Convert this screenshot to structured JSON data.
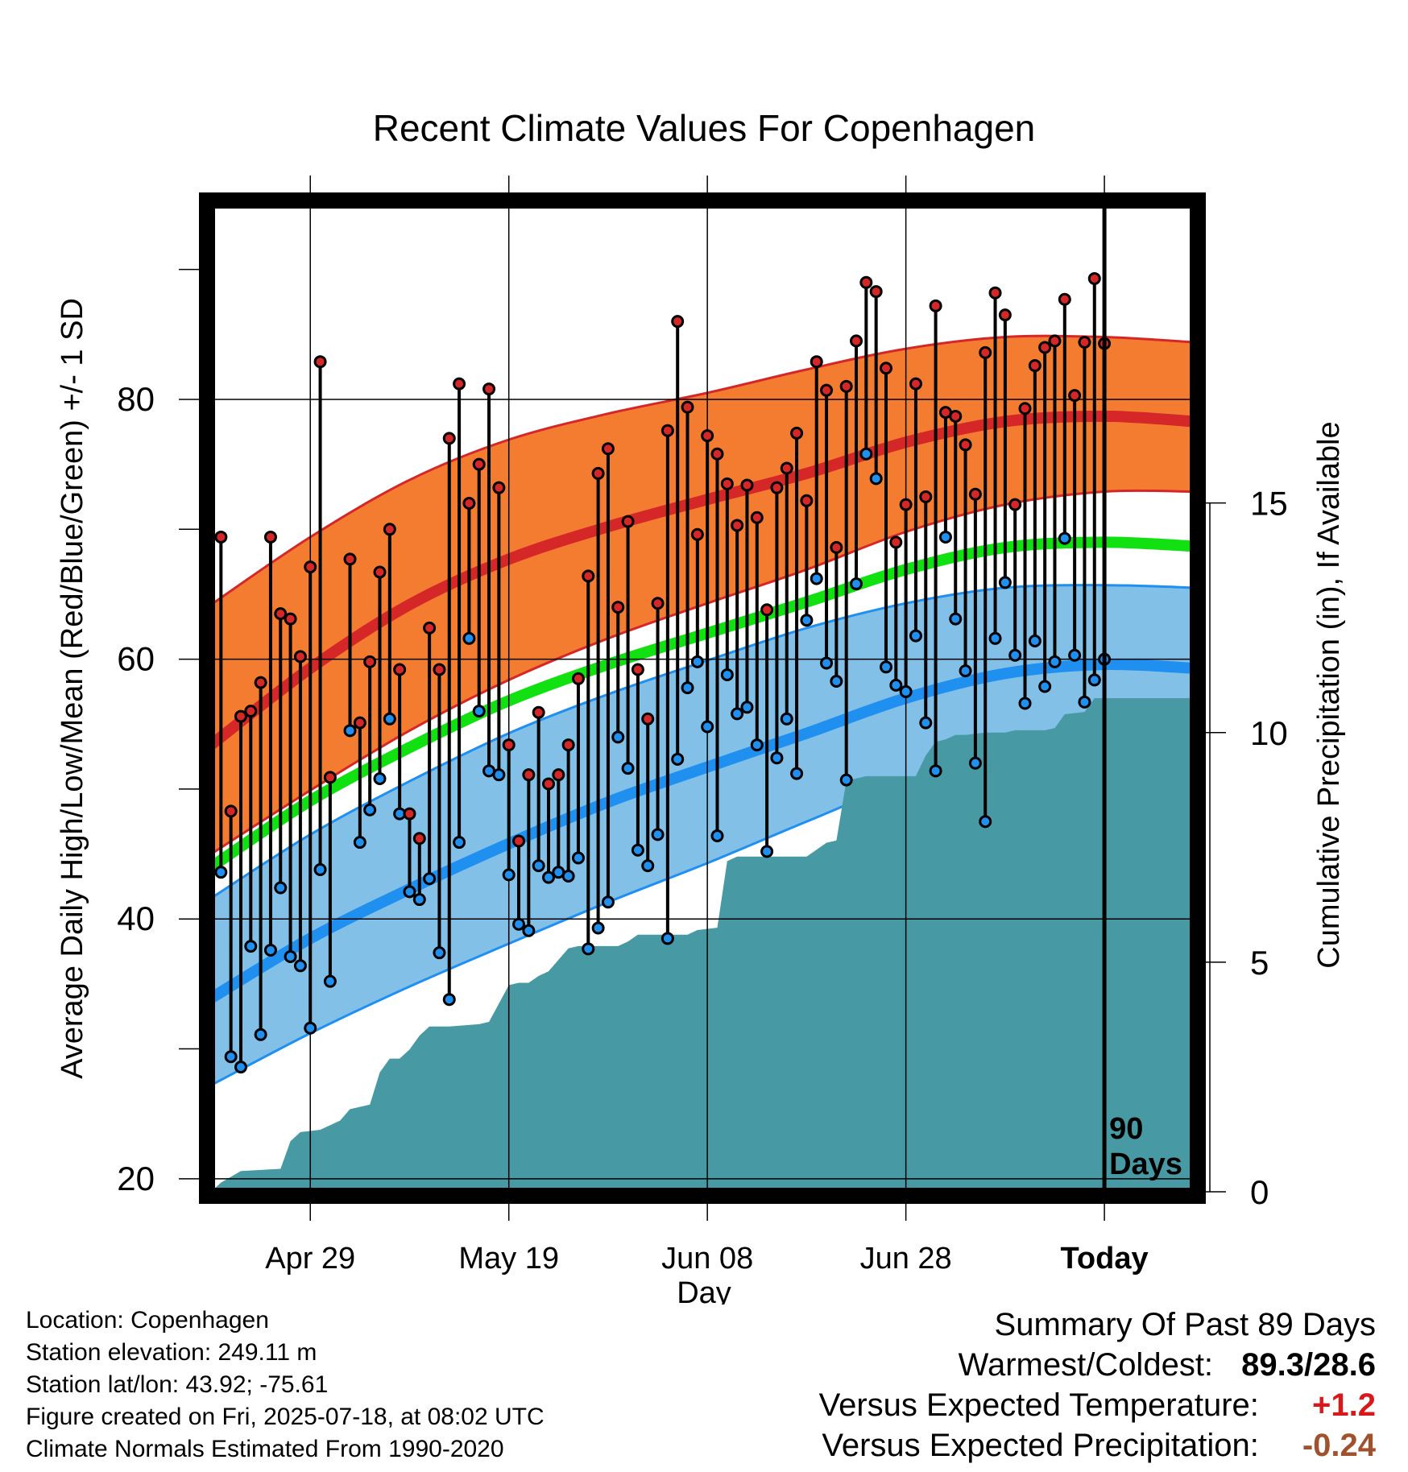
{
  "chart_data": {
    "type": "line",
    "title": "Recent Climate Values For Copenhagen",
    "xlabel": "Day",
    "ylabel": "Average Daily High/Low/Mean (Red/Blue/Green) +/- 1 SD",
    "y2label": "Cumulative Precipitation (in), If Available",
    "ylim": [
      19,
      95
    ],
    "y_ticks": [
      "20",
      "40",
      "60",
      "80"
    ],
    "y2lim": [
      0,
      21.5
    ],
    "y2_ticks": [
      "0",
      "5",
      "10",
      "15"
    ],
    "x_range_days": [
      -89,
      9
    ],
    "x_ticks": [
      {
        "day": -80,
        "label": "Apr 29"
      },
      {
        "day": -60,
        "label": "May 19"
      },
      {
        "day": -40,
        "label": "Jun 08"
      },
      {
        "day": -20,
        "label": "Jun 28"
      },
      {
        "day": 0,
        "label": "Today"
      }
    ],
    "today_marker_label": [
      "90",
      "Days"
    ],
    "normals": {
      "high_mean": [
        [
          -90,
          53.4
        ],
        [
          -80,
          59.3
        ],
        [
          -70,
          64.2
        ],
        [
          -60,
          67.7
        ],
        [
          -50,
          70.2
        ],
        [
          -40,
          72.3
        ],
        [
          -30,
          74.3
        ],
        [
          -20,
          76.7
        ],
        [
          -10,
          78.3
        ],
        [
          0,
          78.7
        ],
        [
          9,
          78.3
        ]
      ],
      "high_sd_upper": [
        [
          -90,
          64.2
        ],
        [
          -80,
          69.4
        ],
        [
          -70,
          73.8
        ],
        [
          -60,
          76.9
        ],
        [
          -50,
          78.9
        ],
        [
          -40,
          80.5
        ],
        [
          -30,
          82.3
        ],
        [
          -20,
          83.9
        ],
        [
          -10,
          84.8
        ],
        [
          0,
          84.8
        ],
        [
          9,
          84.4
        ]
      ],
      "high_sd_lower": [
        [
          -90,
          45.0
        ],
        [
          -80,
          49.9
        ],
        [
          -70,
          54.5
        ],
        [
          -60,
          58.4
        ],
        [
          -50,
          61.6
        ],
        [
          -40,
          64.3
        ],
        [
          -30,
          66.9
        ],
        [
          -20,
          69.8
        ],
        [
          -10,
          71.9
        ],
        [
          0,
          72.9
        ],
        [
          9,
          72.9
        ]
      ],
      "mean": [
        [
          -90,
          44.0
        ],
        [
          -80,
          49.1
        ],
        [
          -70,
          53.2
        ],
        [
          -60,
          56.8
        ],
        [
          -50,
          59.6
        ],
        [
          -40,
          62.0
        ],
        [
          -30,
          64.4
        ],
        [
          -20,
          66.9
        ],
        [
          -10,
          68.6
        ],
        [
          0,
          69.0
        ],
        [
          9,
          68.7
        ]
      ],
      "low_mean": [
        [
          -90,
          33.9
        ],
        [
          -80,
          38.5
        ],
        [
          -70,
          42.3
        ],
        [
          -60,
          45.8
        ],
        [
          -50,
          49.0
        ],
        [
          -40,
          51.7
        ],
        [
          -30,
          54.3
        ],
        [
          -20,
          57.0
        ],
        [
          -10,
          58.9
        ],
        [
          0,
          59.6
        ],
        [
          9,
          59.3
        ]
      ],
      "low_sd_upper": [
        [
          -90,
          41.6
        ],
        [
          -80,
          46.5
        ],
        [
          -70,
          50.6
        ],
        [
          -60,
          54.3
        ],
        [
          -50,
          57.3
        ],
        [
          -40,
          59.9
        ],
        [
          -30,
          62.4
        ],
        [
          -20,
          64.3
        ],
        [
          -10,
          65.5
        ],
        [
          0,
          65.7
        ],
        [
          9,
          65.5
        ]
      ],
      "low_sd_lower": [
        [
          -90,
          27.2
        ],
        [
          -80,
          31.2
        ],
        [
          -70,
          34.8
        ],
        [
          -60,
          38.1
        ],
        [
          -50,
          41.3
        ],
        [
          -40,
          44.3
        ],
        [
          -30,
          47.5
        ],
        [
          -20,
          50.6
        ],
        [
          -10,
          52.9
        ],
        [
          0,
          53.6
        ],
        [
          9,
          53.6
        ]
      ]
    },
    "daily": [
      {
        "day": -89,
        "high": 69.4,
        "low": 43.6
      },
      {
        "day": -88,
        "high": 48.3,
        "low": 29.4
      },
      {
        "day": -87,
        "high": 55.6,
        "low": 28.6
      },
      {
        "day": -86,
        "high": 56.0,
        "low": 37.9
      },
      {
        "day": -85,
        "high": 58.2,
        "low": 31.1
      },
      {
        "day": -84,
        "high": 69.4,
        "low": 37.6
      },
      {
        "day": -83,
        "high": 63.5,
        "low": 42.4
      },
      {
        "day": -82,
        "high": 63.1,
        "low": 37.1
      },
      {
        "day": -81,
        "high": 60.2,
        "low": 36.4
      },
      {
        "day": -80,
        "high": 67.1,
        "low": 31.6
      },
      {
        "day": -79,
        "high": 82.9,
        "low": 43.8
      },
      {
        "day": -78,
        "high": 50.9,
        "low": 35.2
      },
      {
        "day": -76,
        "high": 67.7,
        "low": 54.5
      },
      {
        "day": -75,
        "high": 55.1,
        "low": 45.9
      },
      {
        "day": -74,
        "high": 59.8,
        "low": 48.4
      },
      {
        "day": -73,
        "high": 66.7,
        "low": 50.8
      },
      {
        "day": -72,
        "high": 70.0,
        "low": 55.4
      },
      {
        "day": -71,
        "high": 59.2,
        "low": 48.1
      },
      {
        "day": -70,
        "high": 48.1,
        "low": 42.1
      },
      {
        "day": -69,
        "high": 46.2,
        "low": 41.5
      },
      {
        "day": -68,
        "high": 62.4,
        "low": 43.1
      },
      {
        "day": -67,
        "high": 59.2,
        "low": 37.4
      },
      {
        "day": -66,
        "high": 77.0,
        "low": 33.8
      },
      {
        "day": -65,
        "high": 81.2,
        "low": 45.9
      },
      {
        "day": -64,
        "high": 72.0,
        "low": 61.6
      },
      {
        "day": -63,
        "high": 75.0,
        "low": 56.0
      },
      {
        "day": -62,
        "high": 80.8,
        "low": 51.4
      },
      {
        "day": -61,
        "high": 73.2,
        "low": 51.1
      },
      {
        "day": -60,
        "high": 53.4,
        "low": 43.4
      },
      {
        "day": -59,
        "high": 46.0,
        "low": 39.6
      },
      {
        "day": -58,
        "high": 51.1,
        "low": 39.1
      },
      {
        "day": -57,
        "high": 55.9,
        "low": 44.1
      },
      {
        "day": -56,
        "high": 50.4,
        "low": 43.2
      },
      {
        "day": -55,
        "high": 51.1,
        "low": 43.6
      },
      {
        "day": -54,
        "high": 53.4,
        "low": 43.3
      },
      {
        "day": -53,
        "high": 58.5,
        "low": 44.7
      },
      {
        "day": -52,
        "high": 66.4,
        "low": 37.7
      },
      {
        "day": -51,
        "high": 74.3,
        "low": 39.3
      },
      {
        "day": -50,
        "high": 76.2,
        "low": 41.3
      },
      {
        "day": -49,
        "high": 64.0,
        "low": 54.0
      },
      {
        "day": -48,
        "high": 70.6,
        "low": 51.6
      },
      {
        "day": -47,
        "high": 59.2,
        "low": 45.3
      },
      {
        "day": -46,
        "high": 55.4,
        "low": 44.1
      },
      {
        "day": -45,
        "high": 64.3,
        "low": 46.5
      },
      {
        "day": -44,
        "high": 77.6,
        "low": 38.5
      },
      {
        "day": -43,
        "high": 86.0,
        "low": 52.3
      },
      {
        "day": -42,
        "high": 79.4,
        "low": 57.8
      },
      {
        "day": -41,
        "high": 69.6,
        "low": 59.8
      },
      {
        "day": -40,
        "high": 77.2,
        "low": 54.8
      },
      {
        "day": -39,
        "high": 75.8,
        "low": 46.4
      },
      {
        "day": -38,
        "high": 73.5,
        "low": 58.8
      },
      {
        "day": -37,
        "high": 70.3,
        "low": 55.8
      },
      {
        "day": -36,
        "high": 73.4,
        "low": 56.3
      },
      {
        "day": -35,
        "high": 70.9,
        "low": 53.4
      },
      {
        "day": -34,
        "high": 63.8,
        "low": 45.2
      },
      {
        "day": -33,
        "high": 73.2,
        "low": 52.4
      },
      {
        "day": -32,
        "high": 74.7,
        "low": 55.4
      },
      {
        "day": -31,
        "high": 77.4,
        "low": 51.2
      },
      {
        "day": -30,
        "high": 72.2,
        "low": 63.0
      },
      {
        "day": -29,
        "high": 82.9,
        "low": 66.2
      },
      {
        "day": -28,
        "high": 80.7,
        "low": 59.7
      },
      {
        "day": -27,
        "high": 68.6,
        "low": 58.3
      },
      {
        "day": -26,
        "high": 81.0,
        "low": 50.7
      },
      {
        "day": -25,
        "high": 84.5,
        "low": 65.8
      },
      {
        "day": -24,
        "high": 89.0,
        "low": 75.8
      },
      {
        "day": -23,
        "high": 88.3,
        "low": 73.9
      },
      {
        "day": -22,
        "high": 82.4,
        "low": 59.4
      },
      {
        "day": -21,
        "high": 69.0,
        "low": 58.0
      },
      {
        "day": -20,
        "high": 71.9,
        "low": 57.5
      },
      {
        "day": -19,
        "high": 81.2,
        "low": 61.8
      },
      {
        "day": -18,
        "high": 72.5,
        "low": 55.1
      },
      {
        "day": -17,
        "high": 87.2,
        "low": 51.4
      },
      {
        "day": -16,
        "high": 79.0,
        "low": 69.4
      },
      {
        "day": -15,
        "high": 78.7,
        "low": 63.1
      },
      {
        "day": -14,
        "high": 76.5,
        "low": 59.1
      },
      {
        "day": -13,
        "high": 72.7,
        "low": 52.0
      },
      {
        "day": -12,
        "high": 83.6,
        "low": 47.5
      },
      {
        "day": -11,
        "high": 88.2,
        "low": 61.6
      },
      {
        "day": -10,
        "high": 86.5,
        "low": 65.9
      },
      {
        "day": -9,
        "high": 71.9,
        "low": 60.3
      },
      {
        "day": -8,
        "high": 79.3,
        "low": 56.6
      },
      {
        "day": -7,
        "high": 82.6,
        "low": 61.4
      },
      {
        "day": -6,
        "high": 84.0,
        "low": 57.9
      },
      {
        "day": -5,
        "high": 84.5,
        "low": 59.8
      },
      {
        "day": -4,
        "high": 87.7,
        "low": 69.3
      },
      {
        "day": -3,
        "high": 80.3,
        "low": 60.3
      },
      {
        "day": -2,
        "high": 84.4,
        "low": 56.7
      },
      {
        "day": -1,
        "high": 89.3,
        "low": 58.4
      },
      {
        "day": 0,
        "high": 84.3,
        "low": 60.0
      }
    ],
    "precip_cumulative": [
      [
        -90,
        0.0
      ],
      [
        -89,
        0.2
      ],
      [
        -87,
        0.45
      ],
      [
        -83,
        0.5
      ],
      [
        -82,
        1.1
      ],
      [
        -81,
        1.3
      ],
      [
        -79,
        1.35
      ],
      [
        -77,
        1.55
      ],
      [
        -76,
        1.8
      ],
      [
        -74,
        1.9
      ],
      [
        -73,
        2.6
      ],
      [
        -72,
        2.9
      ],
      [
        -71,
        2.9
      ],
      [
        -70,
        3.1
      ],
      [
        -69,
        3.4
      ],
      [
        -68,
        3.6
      ],
      [
        -66,
        3.6
      ],
      [
        -63,
        3.65
      ],
      [
        -62,
        3.7
      ],
      [
        -61,
        4.1
      ],
      [
        -60,
        4.5
      ],
      [
        -59,
        4.55
      ],
      [
        -58,
        4.55
      ],
      [
        -57,
        4.7
      ],
      [
        -56,
        4.8
      ],
      [
        -55,
        5.05
      ],
      [
        -54,
        5.3
      ],
      [
        -53,
        5.35
      ],
      [
        -49,
        5.35
      ],
      [
        -48,
        5.45
      ],
      [
        -47,
        5.6
      ],
      [
        -42,
        5.6
      ],
      [
        -41,
        5.7
      ],
      [
        -39,
        5.75
      ],
      [
        -38,
        7.2
      ],
      [
        -37,
        7.3
      ],
      [
        -34,
        7.3
      ],
      [
        -32,
        7.3
      ],
      [
        -30,
        7.3
      ],
      [
        -29,
        7.45
      ],
      [
        -28,
        7.6
      ],
      [
        -27,
        7.65
      ],
      [
        -26,
        8.95
      ],
      [
        -24,
        9.05
      ],
      [
        -21,
        9.05
      ],
      [
        -20,
        9.05
      ],
      [
        -19,
        9.05
      ],
      [
        -18,
        9.5
      ],
      [
        -17,
        9.8
      ],
      [
        -16,
        9.85
      ],
      [
        -15,
        9.95
      ],
      [
        -14,
        9.95
      ],
      [
        -12,
        10.0
      ],
      [
        -10,
        10.0
      ],
      [
        -9,
        10.05
      ],
      [
        -7,
        10.05
      ],
      [
        -6,
        10.05
      ],
      [
        -5,
        10.1
      ],
      [
        -4,
        10.4
      ],
      [
        -2,
        10.45
      ],
      [
        -1,
        10.75
      ],
      [
        0,
        10.75
      ],
      [
        9,
        10.75
      ]
    ]
  },
  "info": {
    "location": "Location: Copenhagen",
    "elevation": "Station elevation: 249.11 m",
    "latlon": "Station lat/lon: 43.92; -75.61",
    "created": "Figure created on Fri, 2025-07-18, at 08:02 UTC",
    "normals": "Climate Normals Estimated From 1990-2020"
  },
  "summary": {
    "heading": "Summary Of Past 89 Days",
    "warm_cold_label": "Warmest/Coldest:",
    "warm_cold_value": "89.3/28.6",
    "temp_label": "Versus Expected Temperature:",
    "temp_value": "+1.2",
    "temp_color": "#d7191c",
    "precip_label": "Versus Expected Precipitation:",
    "precip_value": "-0.24",
    "precip_color": "#a0522d"
  },
  "colors": {
    "high_band": "#f47c30",
    "high_line": "#d62728",
    "mean_line": "#11e011",
    "low_band": "#82c0e8",
    "low_line": "#1f8ff0",
    "precip_fill": "#479aa4",
    "high_marker": "#d62728",
    "low_marker": "#1f8ff0"
  }
}
